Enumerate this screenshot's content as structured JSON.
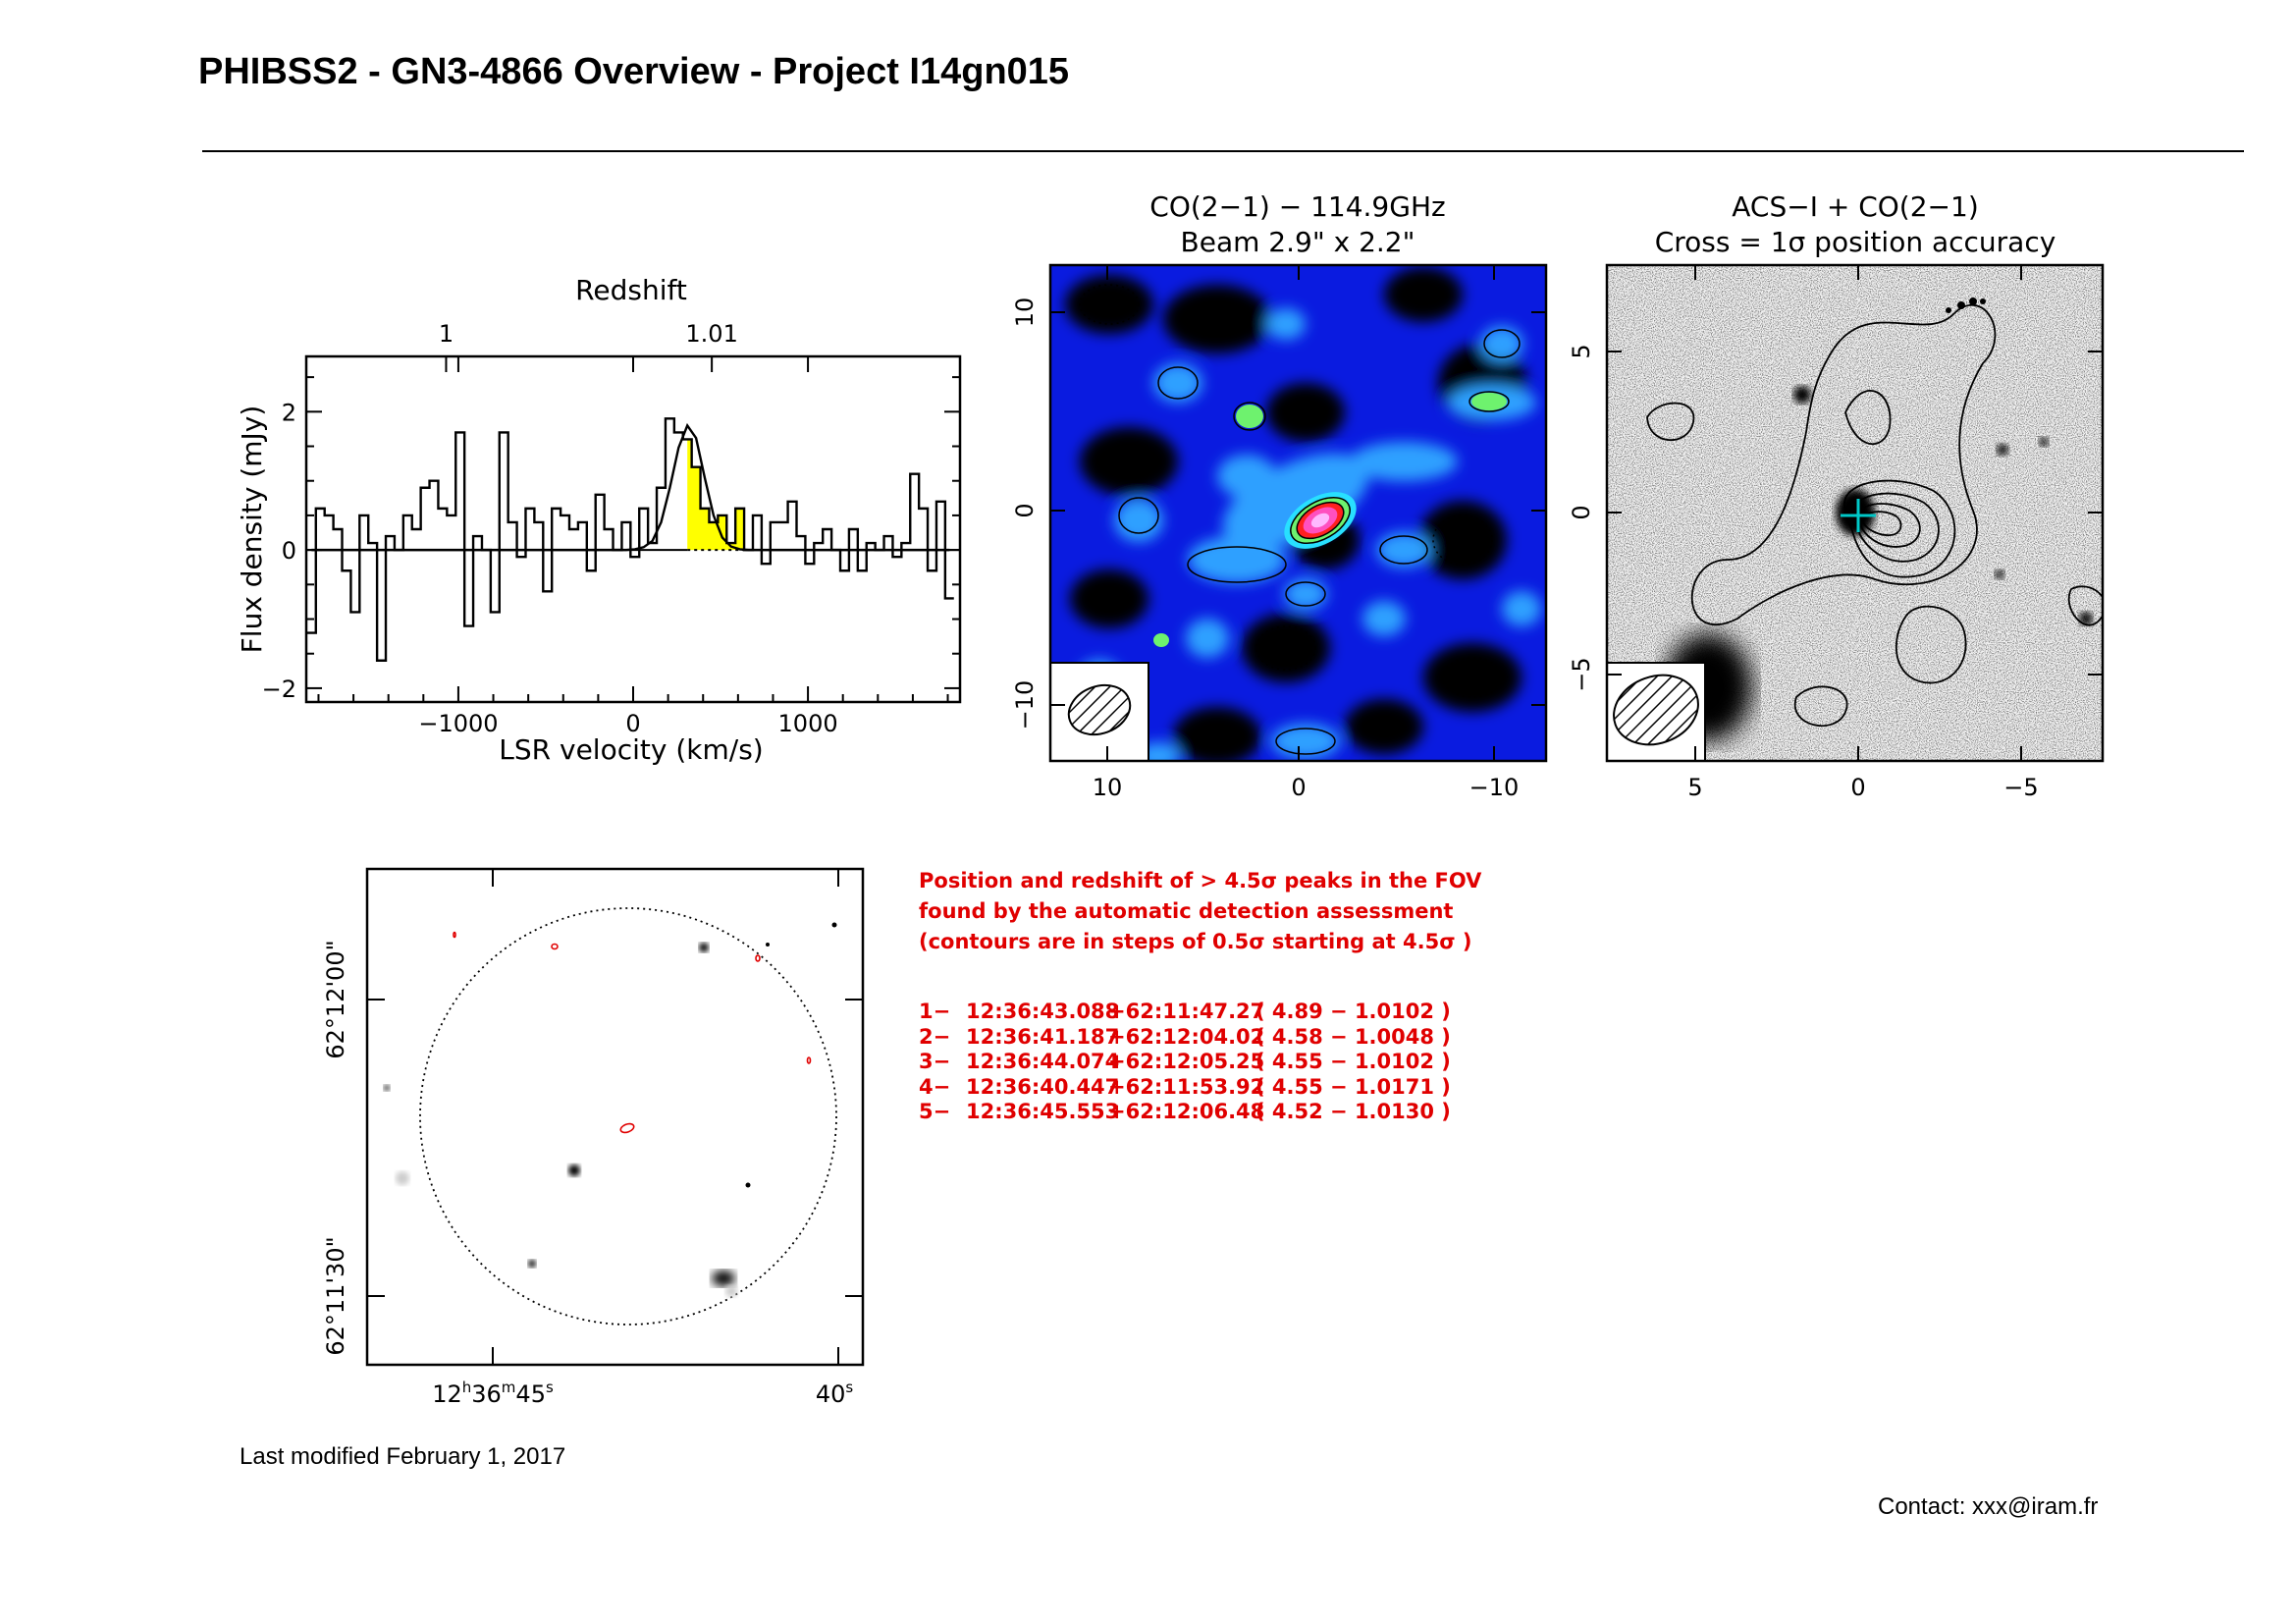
{
  "header": {
    "title": "PHIBSS2 - GN3-4866 Overview - Project I14gn015"
  },
  "spectrum": {
    "top_label": "Redshift",
    "xlabel": "LSR velocity (km/s)",
    "ylabel": "Flux density (mJy)",
    "bottom_ticks": [
      "−1000",
      "0",
      "1000"
    ],
    "top_ticks": [
      "1",
      "1.01"
    ],
    "left_ticks": [
      "2",
      "0",
      "−2"
    ]
  },
  "co_map": {
    "title_line1": "CO(2−1) − 114.9GHz",
    "title_line2": "Beam 2.9\" x 2.2\"",
    "x_ticks": [
      "10",
      "0",
      "−10"
    ],
    "y_ticks": [
      "10",
      "0",
      "−10"
    ]
  },
  "acs_map": {
    "title_line1": "ACS−I + CO(2−1)",
    "title_line2": "Cross = 1σ position accuracy",
    "x_ticks": [
      "5",
      "0",
      "−5"
    ],
    "y_ticks": [
      "5",
      "0",
      "−5"
    ]
  },
  "fov_map": {
    "ra_label_h": "12",
    "ra_label_m": "36",
    "ra_label_s": "45",
    "ra_label_right": "40",
    "ra_sup_h": "h",
    "ra_sup_m": "m",
    "ra_sup_s": "s",
    "dec_ticks": [
      "62°12'00\"",
      "62°11'30\""
    ]
  },
  "peaks": {
    "caption": [
      "Position and redshift of > 4.5σ peaks in the FOV",
      "found by the automatic detection assessment",
      "(contours are in steps of 0.5σ starting at 4.5σ )"
    ],
    "rows": [
      {
        "idx": "1−",
        "ra": "12:36:43.088",
        "dec": "+62:11:47.27",
        "info": "( 4.89 − 1.0102 )"
      },
      {
        "idx": "2−",
        "ra": "12:36:41.187",
        "dec": "+62:12:04.02",
        "info": "( 4.58 − 1.0048 )"
      },
      {
        "idx": "3−",
        "ra": "12:36:44.074",
        "dec": "+62:12:05.25",
        "info": "( 4.55 − 1.0102 )"
      },
      {
        "idx": "4−",
        "ra": "12:36:40.447",
        "dec": "+62:11:53.92",
        "info": "( 4.55 − 1.0171 )"
      },
      {
        "idx": "5−",
        "ra": "12:36:45.553",
        "dec": "+62:12:06.48",
        "info": "( 4.52 − 1.0130 )"
      }
    ]
  },
  "footer": {
    "last_modified": "Last modified February 1, 2017",
    "contact": "Contact: xxx@iram.fr"
  },
  "chart_data": {
    "type": "line",
    "x": [
      -1840,
      -1790,
      -1740,
      -1690,
      -1640,
      -1590,
      -1540,
      -1490,
      -1440,
      -1390,
      -1340,
      -1290,
      -1240,
      -1190,
      -1140,
      -1090,
      -1040,
      -990,
      -940,
      -890,
      -840,
      -790,
      -740,
      -690,
      -640,
      -590,
      -540,
      -490,
      -440,
      -390,
      -340,
      -290,
      -240,
      -190,
      -140,
      -90,
      -40,
      10,
      60,
      110,
      160,
      210,
      260,
      310,
      360,
      410,
      460,
      510,
      560,
      610,
      660,
      710,
      760,
      810,
      860,
      910,
      960,
      1010,
      1060,
      1110,
      1160,
      1210,
      1260,
      1310,
      1360,
      1410,
      1460,
      1510,
      1560,
      1610,
      1660,
      1710,
      1760,
      1810
    ],
    "series": [
      {
        "values": [
          -1.2,
          0.6,
          0.5,
          0.3,
          -0.3,
          -0.9,
          0.5,
          0.1,
          -1.6,
          0.2,
          0.0,
          0.5,
          0.3,
          0.9,
          1.0,
          0.6,
          0.5,
          1.7,
          -1.1,
          0.2,
          0.0,
          -0.9,
          1.7,
          0.4,
          -0.1,
          0.6,
          0.4,
          -0.6,
          0.6,
          0.5,
          0.3,
          0.4,
          -0.3,
          0.8,
          0.3,
          0.0,
          0.4,
          -0.1,
          0.6,
          0.1,
          0.9,
          1.9,
          1.7,
          1.6,
          1.2,
          0.6,
          0.4,
          0.5,
          0.1,
          0.6,
          0.0,
          0.5,
          -0.2,
          0.4,
          0.4,
          0.7,
          0.2,
          -0.2,
          0.1,
          0.3,
          0.0,
          -0.3,
          0.3,
          -0.3,
          0.1,
          0.0,
          0.2,
          -0.1,
          0.1,
          1.1,
          0.6,
          -0.3,
          0.7,
          -0.7
        ]
      },
      {
        "values": [
          0,
          0,
          0,
          0,
          0,
          0,
          0,
          0,
          0,
          0,
          0,
          0,
          0,
          0,
          0,
          0,
          0,
          0,
          0,
          0,
          0,
          0,
          0,
          0,
          0,
          0,
          0,
          0,
          0,
          0,
          0,
          0,
          0,
          0,
          0,
          0,
          0.0,
          0.01,
          0.04,
          0.13,
          0.4,
          0.9,
          1.48,
          1.8,
          1.62,
          1.04,
          0.5,
          0.18,
          0.05,
          0.01,
          0,
          0,
          0,
          0,
          0,
          0,
          0,
          0,
          0,
          0,
          0,
          0,
          0,
          0,
          0,
          0,
          0,
          0,
          0,
          0,
          0,
          0,
          0,
          0
        ]
      }
    ],
    "highlight_range": [
      310,
      640
    ],
    "xlim": [
      -1870,
      1870
    ],
    "ylim": [
      -2.2,
      2.8
    ],
    "top_axis_ticks": [
      {
        "v": -1070,
        "label": "1"
      },
      {
        "v": 450,
        "label": "1.01"
      }
    ]
  }
}
